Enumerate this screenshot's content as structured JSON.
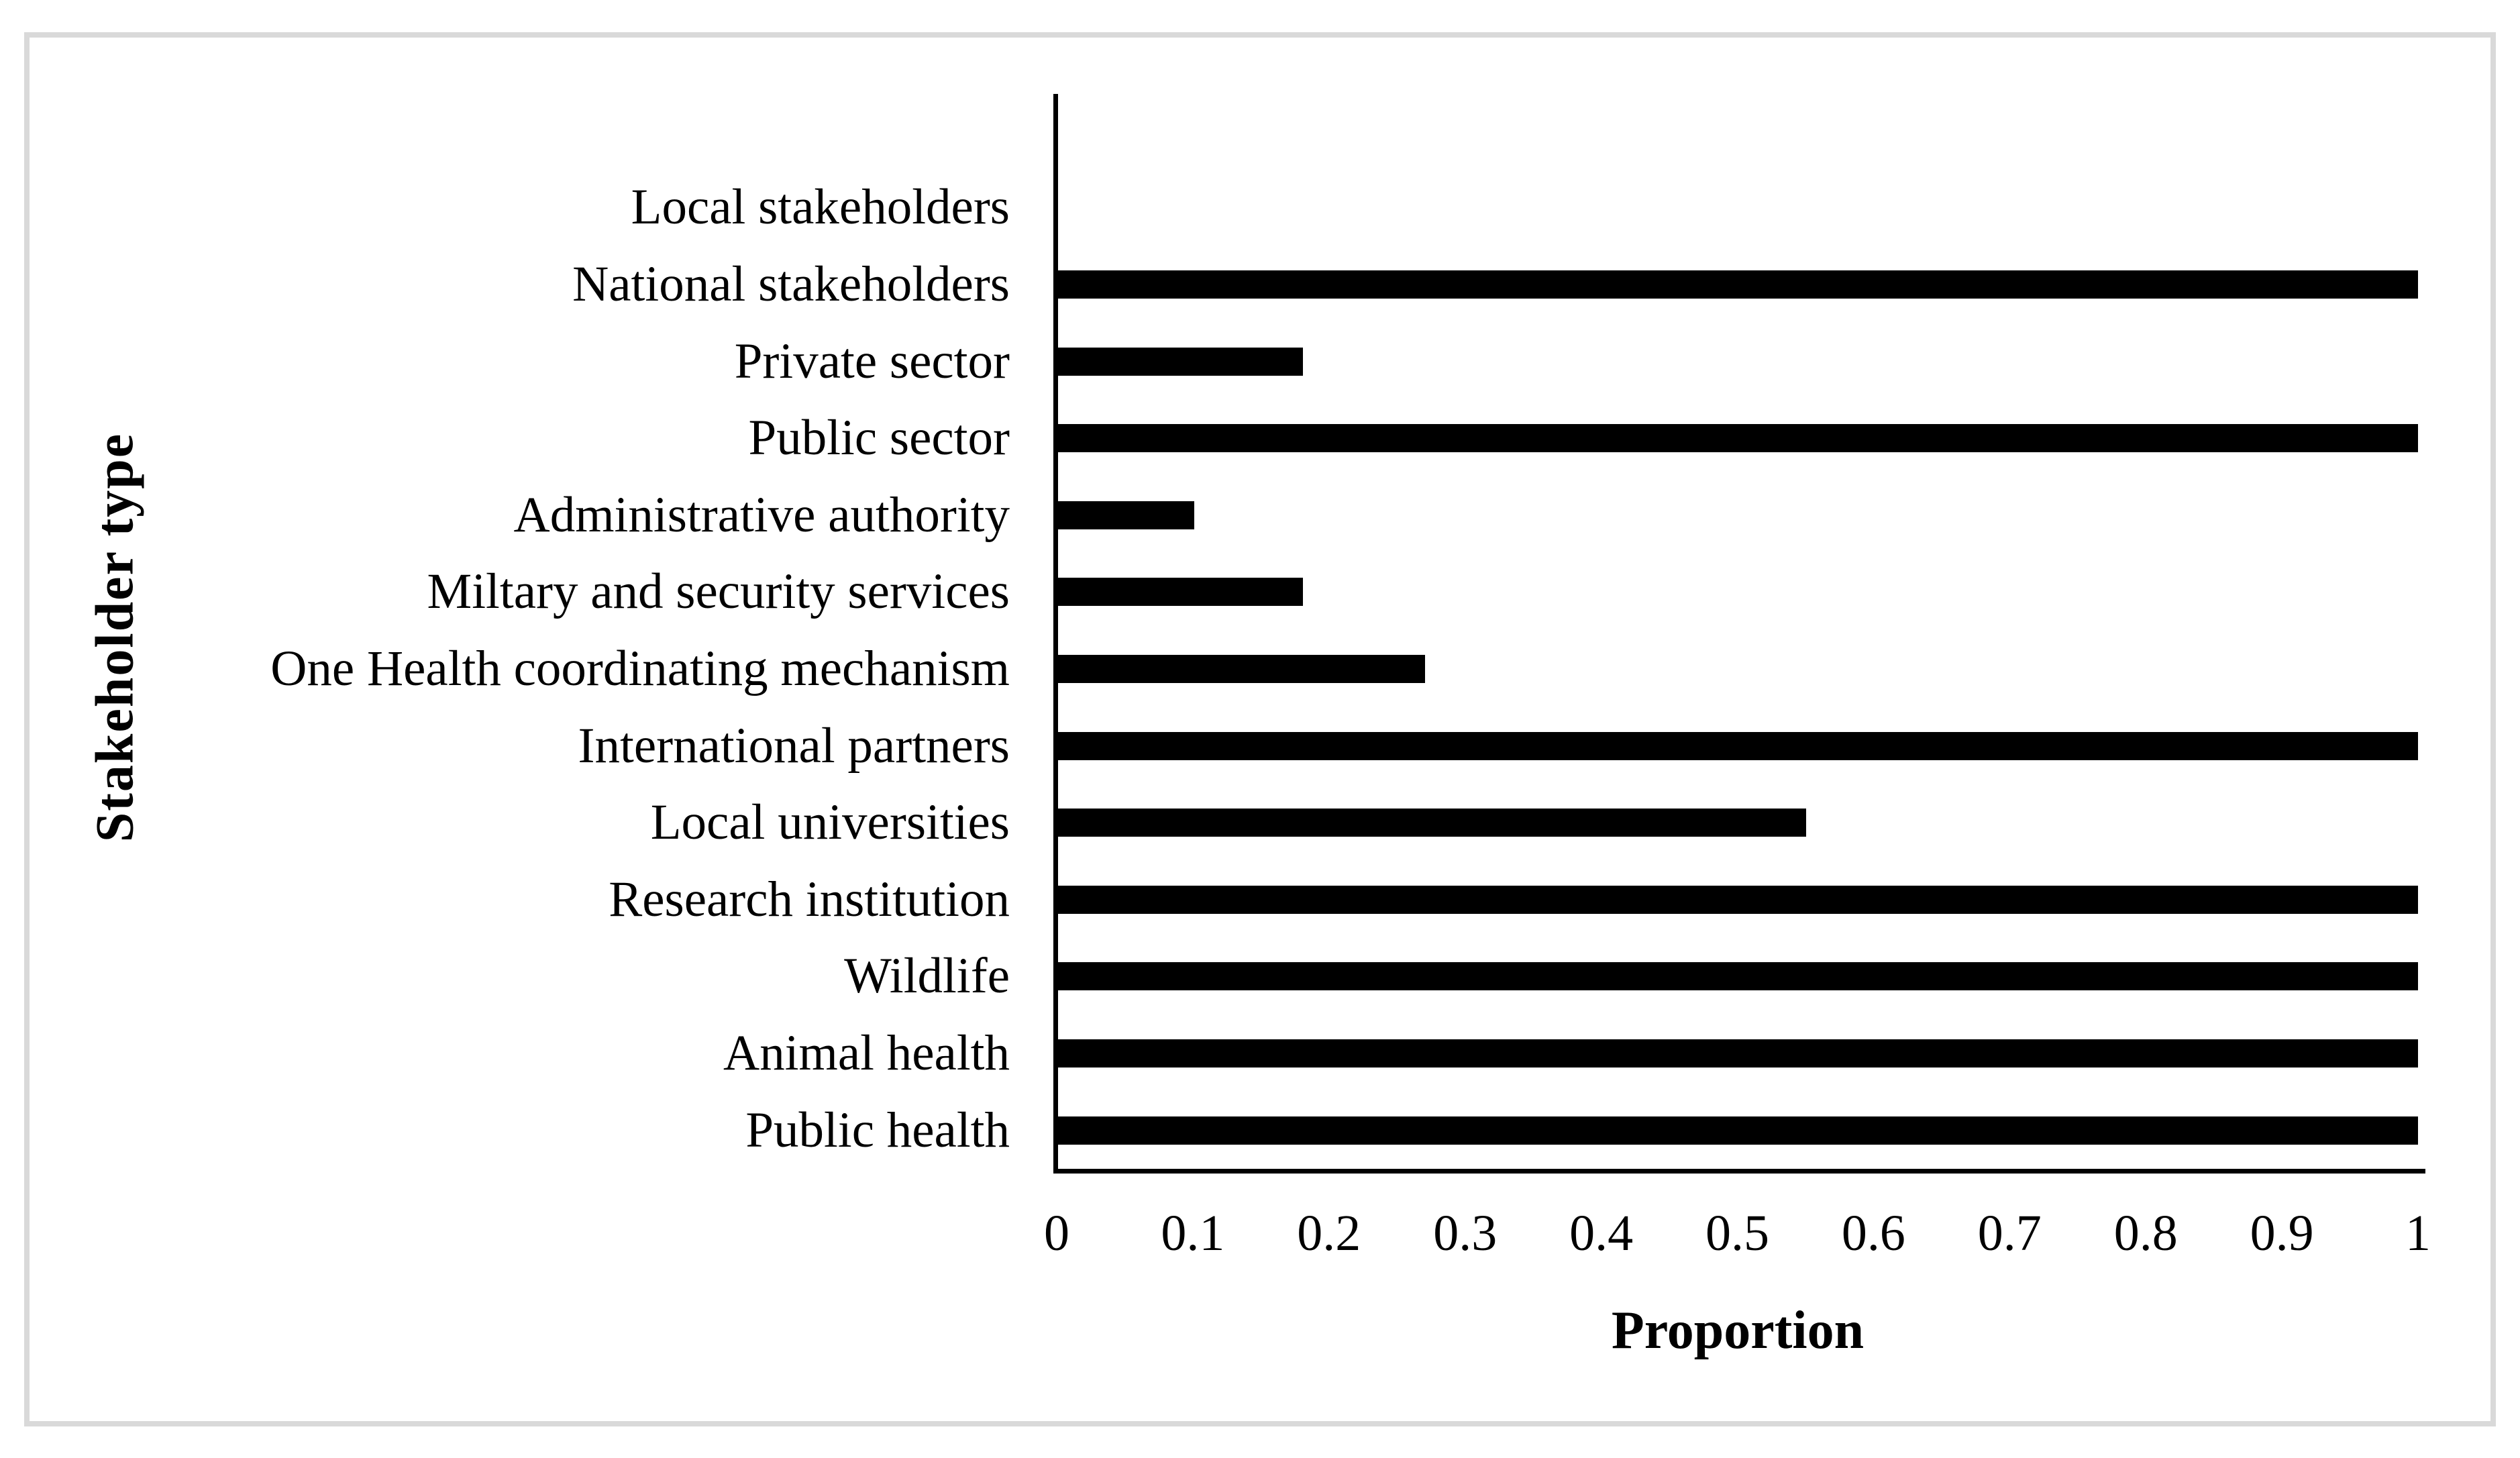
{
  "figure": {
    "background_color": "#ffffff",
    "border_color": "#d9d9d9",
    "axis_color": "#000000",
    "bar_color": "#000000",
    "text_color": "#000000"
  },
  "chart_data": {
    "type": "bar",
    "orientation": "horizontal",
    "title": "",
    "xlabel": "Proportion",
    "ylabel": "Stakeholder type",
    "categories": [
      "Local stakeholders",
      "National stakeholders",
      "Private sector",
      "Public sector",
      "Administrative authority",
      "Miltary and security services",
      "One Health coordinating mechanism",
      "International partners",
      "Local universities",
      "Research institution",
      "Wildlife",
      "Animal health",
      "Public health"
    ],
    "values": [
      0,
      1,
      0.18,
      1,
      0.1,
      0.18,
      0.27,
      1,
      0.55,
      1,
      1,
      1,
      1
    ],
    "xlim": [
      0,
      1
    ],
    "xticks": [
      0,
      0.1,
      0.2,
      0.3,
      0.4,
      0.5,
      0.6,
      0.7,
      0.8,
      0.9,
      1
    ],
    "xtick_labels": [
      "0",
      "0.1",
      "0.2",
      "0.3",
      "0.4",
      "0.5",
      "0.6",
      "0.7",
      "0.8",
      "0.9",
      "1"
    ],
    "grid": false,
    "legend": false
  }
}
